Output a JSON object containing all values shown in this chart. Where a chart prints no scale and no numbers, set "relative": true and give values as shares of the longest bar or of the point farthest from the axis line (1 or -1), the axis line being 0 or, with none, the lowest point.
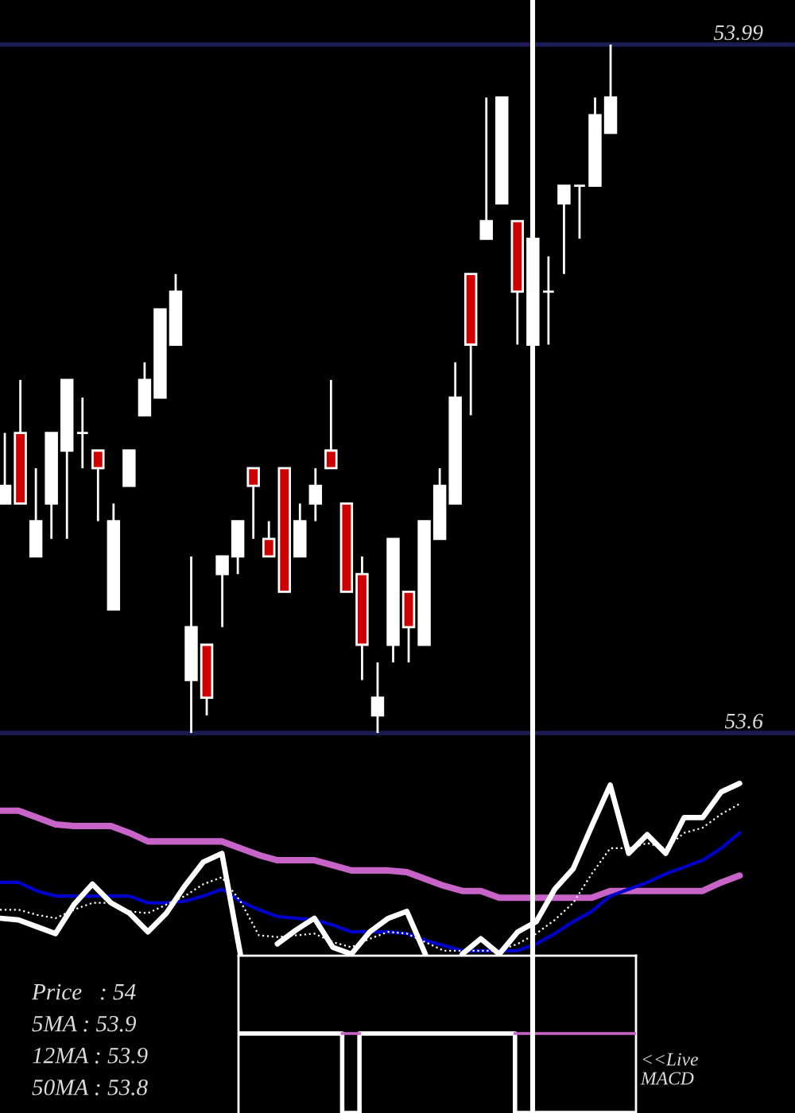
{
  "chart_data": [
    {
      "type": "candlestick",
      "categories": [
        null,
        null,
        null,
        null,
        null,
        null,
        null,
        null,
        null,
        null,
        null,
        null,
        null,
        null,
        null,
        null,
        null,
        null,
        null,
        null,
        null,
        null,
        null,
        null,
        null,
        null,
        null,
        null,
        null,
        null,
        null,
        null,
        null,
        null,
        null,
        null,
        null,
        null,
        null,
        null
      ],
      "ohlc": [
        [
          53.73,
          53.77,
          53.73,
          53.74
        ],
        [
          53.77,
          53.8,
          53.73,
          53.73
        ],
        [
          53.7,
          53.75,
          53.7,
          53.72
        ],
        [
          53.73,
          53.77,
          53.71,
          53.77
        ],
        [
          53.76,
          53.8,
          53.71,
          53.8
        ],
        [
          53.77,
          53.79,
          53.75,
          53.77
        ],
        [
          53.76,
          53.76,
          53.72,
          53.75
        ],
        [
          53.67,
          53.73,
          53.67,
          53.72
        ],
        [
          53.74,
          53.76,
          53.74,
          53.76
        ],
        [
          53.78,
          53.81,
          53.78,
          53.8
        ],
        [
          53.79,
          53.84,
          53.79,
          53.84
        ],
        [
          53.82,
          53.86,
          53.82,
          53.85
        ],
        [
          53.63,
          53.7,
          53.6,
          53.66
        ],
        [
          53.65,
          53.65,
          53.61,
          53.62
        ],
        [
          53.69,
          53.7,
          53.66,
          53.7
        ],
        [
          53.7,
          53.72,
          53.69,
          53.72
        ],
        [
          53.75,
          53.75,
          53.71,
          53.74
        ],
        [
          53.71,
          53.72,
          53.7,
          53.7
        ],
        [
          53.75,
          53.75,
          53.68,
          53.68
        ],
        [
          53.7,
          53.73,
          53.7,
          53.72
        ],
        [
          53.73,
          53.75,
          53.72,
          53.74
        ],
        [
          53.76,
          53.8,
          53.75,
          53.75
        ],
        [
          53.73,
          53.73,
          53.68,
          53.68
        ],
        [
          53.69,
          53.7,
          53.63,
          53.65
        ],
        [
          53.61,
          53.64,
          53.6,
          53.62
        ],
        [
          53.65,
          53.71,
          53.64,
          53.71
        ],
        [
          53.68,
          53.68,
          53.64,
          53.66
        ],
        [
          53.65,
          53.72,
          53.65,
          53.72
        ],
        [
          53.71,
          53.75,
          53.71,
          53.74
        ],
        [
          53.73,
          53.81,
          53.73,
          53.79
        ],
        [
          53.86,
          53.86,
          53.78,
          53.82
        ],
        [
          53.88,
          53.96,
          53.88,
          53.89
        ],
        [
          53.9,
          53.96,
          53.9,
          53.96
        ],
        [
          53.89,
          53.89,
          53.82,
          53.85
        ],
        [
          53.82,
          53.88,
          53.82,
          53.88
        ],
        [
          53.85,
          53.87,
          53.82,
          53.85
        ],
        [
          53.9,
          53.91,
          53.86,
          53.91
        ],
        [
          53.91,
          53.91,
          53.88,
          53.91
        ],
        [
          53.91,
          53.96,
          53.91,
          53.95
        ],
        [
          53.94,
          53.99,
          53.94,
          53.96
        ]
      ],
      "colors": [
        "#ffffff",
        "#cc0000",
        "#ffffff",
        "#ffffff",
        "#ffffff",
        "#ffffff",
        "#cc0000",
        "#ffffff",
        "#ffffff",
        "#ffffff",
        "#ffffff",
        "#ffffff",
        "#ffffff",
        "#cc0000",
        "#ffffff",
        "#ffffff",
        "#cc0000",
        "#cc0000",
        "#cc0000",
        "#ffffff",
        "#ffffff",
        "#cc0000",
        "#cc0000",
        "#cc0000",
        "#ffffff",
        "#ffffff",
        "#cc0000",
        "#ffffff",
        "#ffffff",
        "#ffffff",
        "#cc0000",
        "#ffffff",
        "#ffffff",
        "#cc0000",
        "#ffffff",
        "#ffffff",
        "#ffffff",
        "#ffffff",
        "#ffffff",
        "#ffffff"
      ],
      "ylim": [
        53.6,
        53.99
      ],
      "yticks": [
        53.6,
        53.99
      ],
      "grid": "y"
    },
    {
      "type": "line",
      "relative": true,
      "categories": [
        null,
        null,
        null,
        null,
        null,
        null,
        null,
        null,
        null,
        null,
        null,
        null,
        null,
        null,
        null,
        null,
        null,
        null,
        null,
        null,
        null,
        null,
        null,
        null,
        null,
        null,
        null,
        null,
        null,
        null,
        null,
        null,
        null,
        null,
        null,
        null,
        null,
        null,
        null,
        null,
        null
      ],
      "series": [
        {
          "color": "#c864c8",
          "values": [
            0.84,
            0.84,
            0.8,
            0.76,
            0.75,
            0.75,
            0.75,
            0.71,
            0.66,
            0.66,
            0.66,
            0.66,
            0.66,
            0.62,
            0.58,
            0.55,
            0.55,
            0.55,
            0.52,
            0.49,
            0.49,
            0.49,
            0.48,
            0.44,
            0.4,
            0.37,
            0.37,
            0.33,
            0.33,
            0.33,
            0.33,
            0.33,
            0.33,
            0.37,
            0.37,
            0.37,
            0.37,
            0.37,
            0.37,
            0.42,
            0.46
          ]
        },
        {
          "color": "#0000cc",
          "values": [
            0.42,
            0.42,
            0.37,
            0.34,
            0.34,
            0.34,
            0.34,
            0.34,
            0.3,
            0.3,
            0.31,
            0.34,
            0.38,
            0.31,
            0.26,
            0.22,
            0.21,
            0.2,
            0.17,
            0.13,
            0.13,
            0.13,
            0.12,
            0.08,
            0.05,
            0.02,
            0.02,
            0.02,
            0.02,
            0.06,
            0.12,
            0.19,
            0.25,
            0.34,
            0.38,
            0.42,
            0.47,
            0.51,
            0.55,
            0.62,
            0.71
          ]
        },
        {
          "color": "#ffffff",
          "line_style": "dotted",
          "values": [
            0.26,
            0.26,
            0.23,
            0.21,
            0.26,
            0.3,
            0.3,
            0.25,
            0.24,
            0.29,
            0.34,
            0.41,
            0.45,
            0.31,
            0.11,
            0.1,
            0.11,
            0.12,
            0.07,
            0.04,
            0.09,
            0.13,
            0.12,
            0.07,
            0.02,
            0.02,
            0.02,
            0.02,
            0.06,
            0.12,
            0.2,
            0.3,
            0.47,
            0.62,
            0.62,
            0.65,
            0.62,
            0.71,
            0.74,
            0.82,
            0.88
          ]
        },
        {
          "color": "#ffffff",
          "values": [
            0.21,
            0.2,
            0.16,
            0.12,
            0.29,
            0.41,
            0.3,
            0.24,
            0.13,
            0.24,
            0.4,
            0.54,
            0.59,
            0,
            null,
            0.06,
            0.14,
            0.21,
            0.04,
            0,
            0.13,
            0.21,
            0.25,
            0,
            null,
            0,
            0.09,
            0,
            0.13,
            0.19,
            0.38,
            0.5,
            0.75,
            0.99,
            0.59,
            0.7,
            0.59,
            0.8,
            0.8,
            0.95,
            1.0
          ]
        }
      ],
      "annotations": [
        "Price   : 54",
        "5MA : 53.9",
        "12MA : 53.9",
        "50MA : 53.8"
      ]
    },
    {
      "type": "step",
      "relative": true,
      "categories": [
        null,
        null,
        null,
        null,
        null,
        null,
        null,
        null,
        null,
        null,
        null,
        null,
        null,
        null,
        null,
        null,
        null,
        null,
        null,
        null,
        null,
        null,
        null,
        null
      ],
      "series": [
        {
          "color": "#ffffff",
          "values": [
            1,
            1,
            1,
            1,
            1,
            1,
            0,
            1,
            1,
            1,
            1,
            1,
            1,
            1,
            1,
            1,
            0,
            0,
            0,
            0,
            0,
            0,
            0,
            0
          ]
        },
        {
          "color": "#c864c8",
          "values": [
            null,
            null,
            null,
            null,
            null,
            null,
            1,
            null,
            null,
            null,
            null,
            null,
            null,
            null,
            null,
            null,
            1,
            1,
            1,
            1,
            1,
            1,
            1,
            1
          ]
        }
      ],
      "annotations": [
        "<<Live\nMACD"
      ]
    }
  ]
}
